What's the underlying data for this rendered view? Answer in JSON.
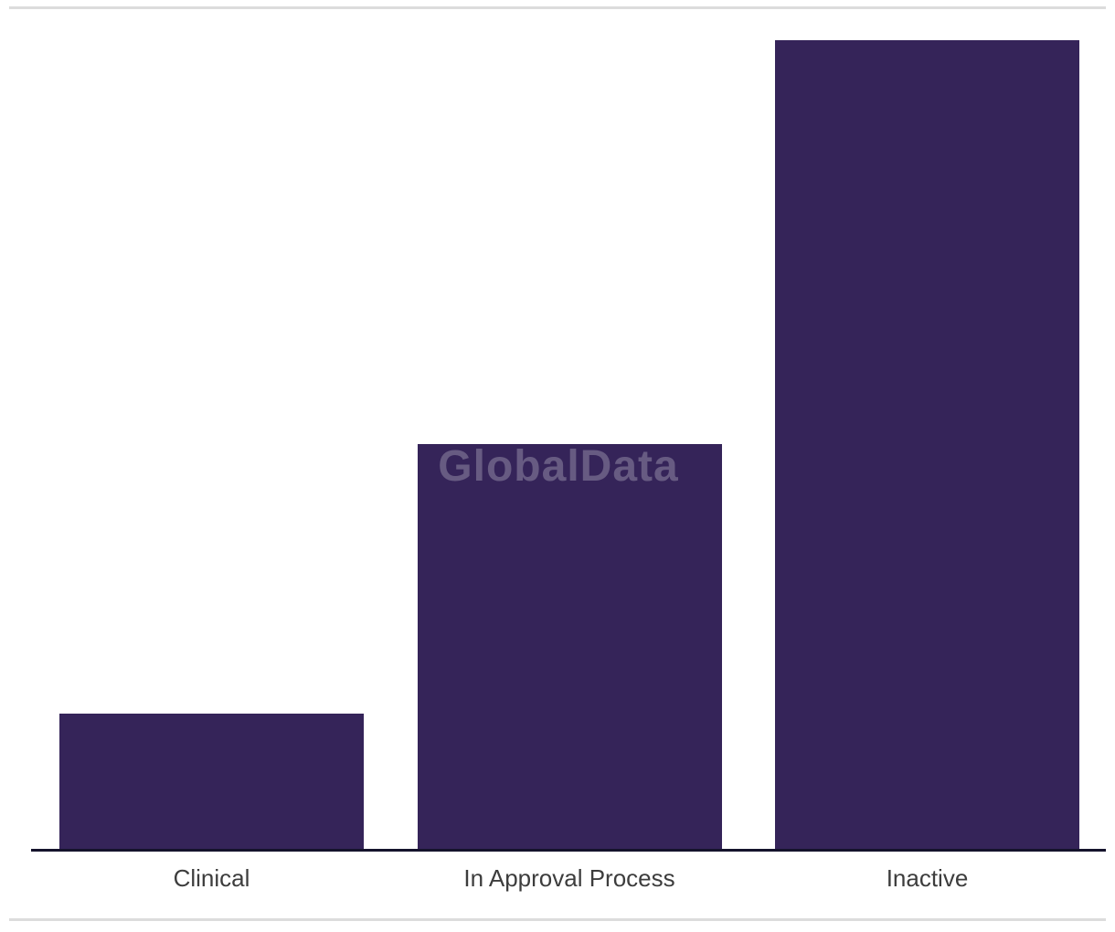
{
  "page": {
    "background_color": "#ffffff",
    "rule_color": "#dcdcdc"
  },
  "watermark": {
    "text": "GlobalData",
    "color": "rgba(255,255,255,0.25)"
  },
  "chart_data": {
    "type": "bar",
    "title": "",
    "categories": [
      "Clinical",
      "In Approval Process",
      "Inactive"
    ],
    "values": [
      1,
      3,
      6
    ],
    "xlabel": "",
    "ylabel": "",
    "ylim": [
      0,
      6.07
    ],
    "grid": false,
    "legend": false,
    "y_axis_shown": false,
    "value_labels_shown": false,
    "bar_color": "#352459",
    "axis_line_color": "#15132c",
    "category_label_color": "#3d3d3d"
  }
}
